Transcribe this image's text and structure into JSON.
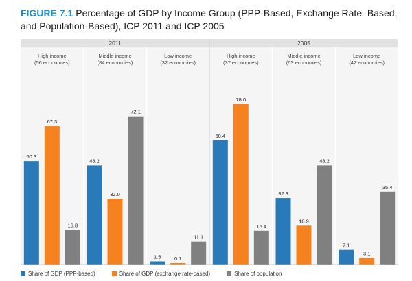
{
  "title": {
    "figure_label": "FIGURE 7.1",
    "text": "Percentage of GDP by Income Group (PPP-Based, Exchange Rate–Based, and Population-Based), ICP 2011 and ICP 2005"
  },
  "colors": {
    "ppp": "#2a7ab9",
    "exchange": "#f5821f",
    "population": "#808080",
    "header_band": "#e2e2e2",
    "panel_bg": "#f5f5f5",
    "divider": "#d0d0d0",
    "title_accent": "#1f8fc4"
  },
  "chart_data": {
    "type": "bar",
    "ylim": [
      0,
      100
    ],
    "grid": false,
    "legend_position": "bottom",
    "series_names": [
      "Share of GDP (PPP-based)",
      "Share of GDP (exchange rate-based)",
      "Share of population"
    ],
    "years": [
      {
        "year": "2011",
        "groups": [
          {
            "name": "High income",
            "economies": "(56  economies)",
            "values": [
              50.3,
              67.3,
              16.8
            ]
          },
          {
            "name": "Middle income",
            "economies": "(84  economies)",
            "values": [
              48.2,
              32.0,
              72.1
            ]
          },
          {
            "name": "Low income",
            "economies": "(32  economies)",
            "values": [
              1.5,
              0.7,
              11.1
            ]
          }
        ]
      },
      {
        "year": "2005",
        "groups": [
          {
            "name": "High income",
            "economies": "(37  economies)",
            "values": [
              60.4,
              78.0,
              16.4
            ]
          },
          {
            "name": "Middle income",
            "economies": "(63  economies)",
            "values": [
              32.3,
              18.9,
              48.2
            ]
          },
          {
            "name": "Low income",
            "economies": "(42  economies)",
            "values": [
              7.1,
              3.1,
              35.4
            ]
          }
        ]
      }
    ]
  }
}
